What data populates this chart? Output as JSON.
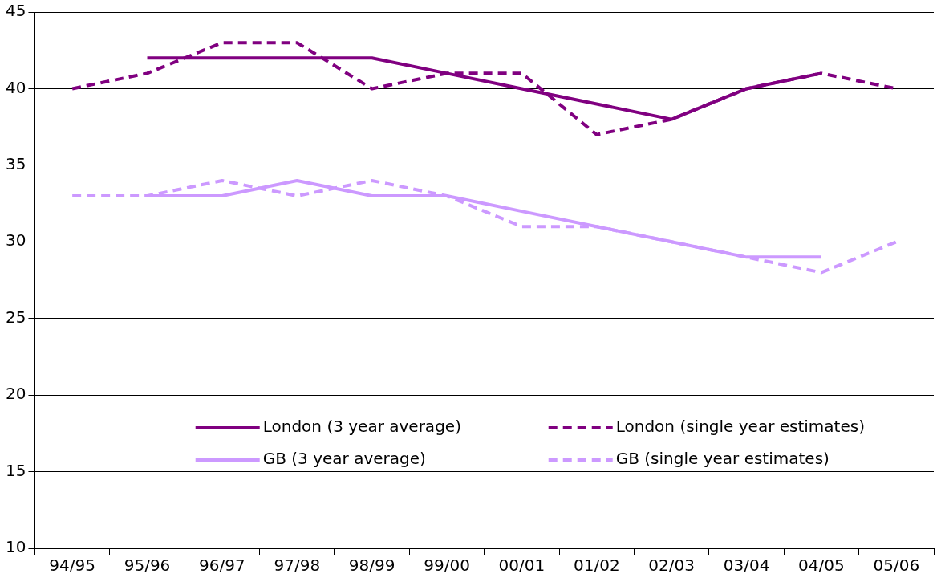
{
  "chart_data": {
    "type": "line",
    "categories": [
      "94/95",
      "95/96",
      "96/97",
      "97/98",
      "98/99",
      "99/00",
      "00/01",
      "01/02",
      "02/03",
      "03/04",
      "04/05",
      "05/06"
    ],
    "series": [
      {
        "name": "London (3 year average)",
        "color": "#800080",
        "line_style": "solid",
        "values": [
          null,
          42,
          42,
          42,
          42,
          41,
          40,
          39,
          38,
          40,
          41,
          null
        ]
      },
      {
        "name": "London (single year estimates)",
        "color": "#800080",
        "line_style": "dashed",
        "values": [
          40,
          41,
          43,
          43,
          40,
          41,
          41,
          37,
          38,
          40,
          41,
          40
        ]
      },
      {
        "name": "GB (3 year average)",
        "color": "#cc99ff",
        "line_style": "solid",
        "values": [
          null,
          33,
          33,
          34,
          33,
          33,
          32,
          31,
          30,
          29,
          29,
          null
        ]
      },
      {
        "name": "GB (single year estimates)",
        "color": "#cc99ff",
        "line_style": "dashed",
        "values": [
          33,
          33,
          34,
          33,
          34,
          33,
          31,
          31,
          30,
          29,
          28,
          30
        ]
      }
    ],
    "ylim": [
      10,
      45
    ],
    "yticks": [
      10,
      15,
      20,
      25,
      30,
      35,
      40,
      45
    ],
    "grid": "y",
    "legend": "bottom",
    "marker": "none"
  }
}
